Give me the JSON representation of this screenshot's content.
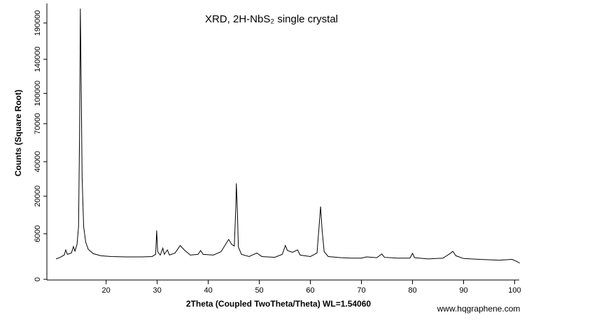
{
  "chart_data": {
    "type": "line",
    "title": "XRD, 2H-NbS₂ single crystal",
    "x_label": "2Theta (Coupled TwoTheta/Theta) WL=1.54060",
    "y_label": "Counts (Square Root)",
    "watermark": "www.hqgraphene.com",
    "yscale": "sqrt",
    "xlim": [
      8.4,
      100.9
    ],
    "ylim": [
      0,
      220000
    ],
    "xticks": [
      20,
      30,
      40,
      50,
      60,
      70,
      80,
      90,
      100
    ],
    "yticks": [
      0,
      6000,
      20000,
      40000,
      70000,
      100000,
      140000,
      190000
    ],
    "series": [
      {
        "color": "#000000",
        "x": [
          10.2,
          11,
          11.8,
          12.1,
          12.4,
          13.2,
          13.6,
          13.9,
          14.3,
          14.6,
          14.8,
          14.95,
          15.1,
          15.3,
          15.6,
          16,
          16.5,
          17.5,
          19,
          21,
          24,
          27,
          29,
          29.7,
          29.9,
          30.1,
          30.6,
          31.1,
          31.4,
          32,
          32.4,
          33.5,
          34.5,
          35.3,
          36.5,
          38,
          38.5,
          39,
          41,
          42.5,
          43.5,
          44,
          44.6,
          45.1,
          45.4,
          45.5,
          45.7,
          45.9,
          46.5,
          48,
          49.5,
          50.5,
          53,
          54.5,
          55.1,
          55.5,
          56.5,
          57.5,
          58,
          60,
          61.3,
          61.7,
          62,
          62.3,
          62.7,
          63.5,
          66,
          68,
          70,
          71,
          73,
          74,
          74.5,
          77,
          79.5,
          80,
          80.4,
          83,
          86,
          87.5,
          87.9,
          88.5,
          90,
          93,
          97,
          99.5,
          100.5,
          101
        ],
        "values": [
          1190,
          1400,
          1700,
          2500,
          1800,
          2000,
          3100,
          2300,
          3500,
          8000,
          60000,
          212000,
          120000,
          30000,
          8000,
          4000,
          2600,
          1900,
          1600,
          1500,
          1450,
          1450,
          1500,
          1800,
          6900,
          2200,
          1700,
          2800,
          1800,
          2500,
          1700,
          2000,
          3300,
          2500,
          1700,
          1800,
          2400,
          1800,
          1700,
          2200,
          3700,
          4600,
          3500,
          3200,
          15000,
          26600,
          14000,
          3000,
          1800,
          1500,
          2000,
          1500,
          1400,
          1800,
          3300,
          2400,
          2100,
          2500,
          1700,
          1500,
          2000,
          8000,
          15300,
          7000,
          2200,
          1500,
          1350,
          1300,
          1300,
          1450,
          1350,
          1850,
          1400,
          1300,
          1300,
          1950,
          1350,
          1200,
          1300,
          2000,
          2270,
          1600,
          1250,
          1150,
          1050,
          1150,
          900,
          750
        ]
      }
    ]
  }
}
